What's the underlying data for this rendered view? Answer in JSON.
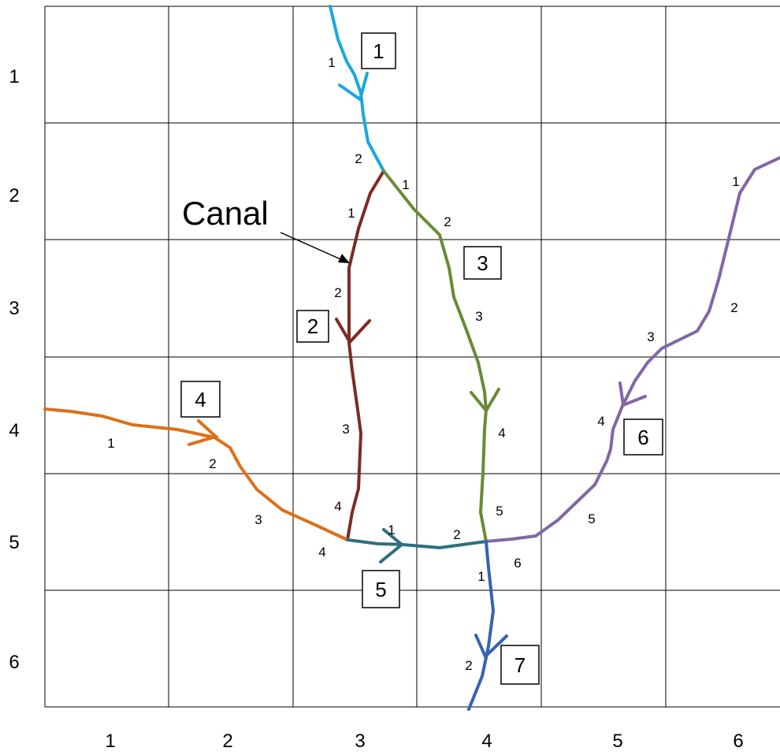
{
  "grid": {
    "row_labels": [
      "1",
      "2",
      "3",
      "4",
      "5",
      "6"
    ],
    "col_labels": [
      "1",
      "2",
      "3",
      "4",
      "5",
      "6"
    ]
  },
  "canal_label": "Canal",
  "streams": [
    {
      "id": "1",
      "color": "#1aa7de",
      "segment_labels": [
        "1",
        "2"
      ]
    },
    {
      "id": "2",
      "color": "#7b2c23",
      "segment_labels": [
        "1",
        "2",
        "3",
        "4"
      ]
    },
    {
      "id": "3",
      "color": "#6a8a34",
      "segment_labels": [
        "1",
        "2",
        "3",
        "4",
        "5"
      ]
    },
    {
      "id": "4",
      "color": "#de6f1a",
      "segment_labels": [
        "1",
        "2",
        "3",
        "4"
      ]
    },
    {
      "id": "5",
      "color": "#2e6f7e",
      "segment_labels": [
        "1",
        "2"
      ]
    },
    {
      "id": "6",
      "color": "#8067a6",
      "segment_labels": [
        "1",
        "2",
        "3",
        "4",
        "5",
        "6"
      ]
    },
    {
      "id": "7",
      "color": "#3463b3",
      "segment_labels": [
        "1",
        "2"
      ]
    }
  ]
}
